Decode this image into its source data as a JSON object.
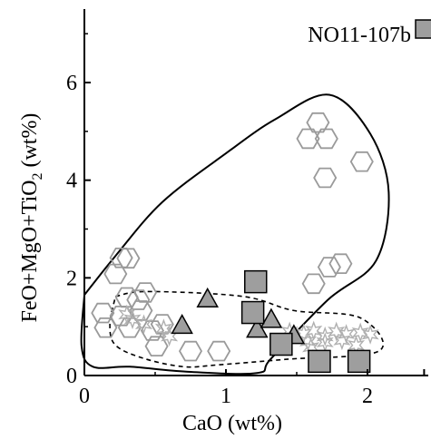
{
  "chart_data": {
    "type": "scatter",
    "title": "",
    "xlabel": "CaO (wt%)",
    "ylabel_parts": {
      "main": "FeO+MgO+TiO",
      "subscript": "2",
      "suffix": " (wt%)"
    },
    "xlim": [
      0,
      2.4
    ],
    "ylim": [
      0,
      7.3
    ],
    "x_ticks": [
      0,
      1,
      2
    ],
    "y_ticks": [
      0,
      2,
      4,
      6
    ],
    "grid": false,
    "legend": {
      "position": "top-right",
      "label": "NO11-107b",
      "marker": "square"
    },
    "colors": {
      "filled_marker": "#9e9e9e",
      "hexagon_stroke": "#9a9a9a",
      "star_stroke": "#b0b0b0",
      "outline": "#000000"
    },
    "series": [
      {
        "name": "NO11-107b",
        "marker": "square",
        "points": [
          {
            "x": 1.21,
            "y": 1.92
          },
          {
            "x": 1.19,
            "y": 1.29
          },
          {
            "x": 1.39,
            "y": 0.64
          },
          {
            "x": 1.66,
            "y": 0.29
          },
          {
            "x": 1.94,
            "y": 0.29
          }
        ]
      },
      {
        "marker": "triangle",
        "points": [
          {
            "x": 0.69,
            "y": 1.03
          },
          {
            "x": 0.87,
            "y": 1.57
          },
          {
            "x": 1.22,
            "y": 0.95
          },
          {
            "x": 1.32,
            "y": 1.15
          },
          {
            "x": 1.48,
            "y": 0.82
          }
        ]
      },
      {
        "marker": "hexagon",
        "points": [
          {
            "x": 1.65,
            "y": 5.18
          },
          {
            "x": 1.58,
            "y": 4.85
          },
          {
            "x": 1.71,
            "y": 4.85
          },
          {
            "x": 1.7,
            "y": 4.05
          },
          {
            "x": 1.96,
            "y": 4.38
          },
          {
            "x": 0.22,
            "y": 2.08
          },
          {
            "x": 0.26,
            "y": 2.41
          },
          {
            "x": 0.31,
            "y": 2.4
          },
          {
            "x": 1.73,
            "y": 2.22
          },
          {
            "x": 1.81,
            "y": 2.29
          },
          {
            "x": 1.62,
            "y": 1.88
          },
          {
            "x": 0.13,
            "y": 1.28
          },
          {
            "x": 0.26,
            "y": 1.22
          },
          {
            "x": 0.38,
            "y": 1.55
          },
          {
            "x": 0.43,
            "y": 1.7
          },
          {
            "x": 0.4,
            "y": 1.33
          },
          {
            "x": 0.15,
            "y": 0.98
          },
          {
            "x": 0.32,
            "y": 0.98
          },
          {
            "x": 0.48,
            "y": 0.92
          },
          {
            "x": 0.51,
            "y": 0.6
          },
          {
            "x": 0.75,
            "y": 0.5
          },
          {
            "x": 0.95,
            "y": 0.5
          },
          {
            "x": 0.55,
            "y": 1.05
          },
          {
            "x": 0.3,
            "y": 1.6
          }
        ]
      },
      {
        "marker": "star",
        "points": [
          {
            "x": 0.34,
            "y": 1.15
          },
          {
            "x": 0.42,
            "y": 1.05
          },
          {
            "x": 0.56,
            "y": 0.96
          },
          {
            "x": 0.6,
            "y": 0.8
          },
          {
            "x": 1.45,
            "y": 0.9
          },
          {
            "x": 1.55,
            "y": 0.86
          },
          {
            "x": 1.62,
            "y": 0.92
          },
          {
            "x": 1.7,
            "y": 0.8
          },
          {
            "x": 1.78,
            "y": 0.9
          },
          {
            "x": 1.85,
            "y": 0.85
          },
          {
            "x": 1.95,
            "y": 0.88
          },
          {
            "x": 2.02,
            "y": 0.84
          },
          {
            "x": 1.58,
            "y": 0.7
          },
          {
            "x": 1.7,
            "y": 0.68
          },
          {
            "x": 1.82,
            "y": 0.72
          },
          {
            "x": 1.92,
            "y": 0.62
          },
          {
            "x": 1.6,
            "y": 0.58
          },
          {
            "x": 0.3,
            "y": 1.25
          }
        ]
      }
    ],
    "regions": [
      {
        "style": "solid",
        "points": [
          {
            "x": 0.0,
            "y": 1.65
          },
          {
            "x": 0.22,
            "y": 2.45
          },
          {
            "x": 0.55,
            "y": 3.55
          },
          {
            "x": 1.0,
            "y": 4.55
          },
          {
            "x": 1.35,
            "y": 5.25
          },
          {
            "x": 1.73,
            "y": 5.75
          },
          {
            "x": 2.02,
            "y": 4.95
          },
          {
            "x": 2.15,
            "y": 3.75
          },
          {
            "x": 2.06,
            "y": 2.35
          },
          {
            "x": 1.72,
            "y": 1.55
          },
          {
            "x": 1.32,
            "y": 0.35
          },
          {
            "x": 1.22,
            "y": 0.05
          },
          {
            "x": 0.72,
            "y": 0.08
          },
          {
            "x": 0.32,
            "y": 0.18
          },
          {
            "x": 0.06,
            "y": 0.18
          },
          {
            "x": -0.02,
            "y": 0.6
          },
          {
            "x": 0.0,
            "y": 1.65
          }
        ]
      },
      {
        "style": "dashed",
        "points": [
          {
            "x": 0.22,
            "y": 1.62
          },
          {
            "x": 0.45,
            "y": 1.72
          },
          {
            "x": 1.12,
            "y": 1.62
          },
          {
            "x": 1.48,
            "y": 1.33
          },
          {
            "x": 1.95,
            "y": 1.18
          },
          {
            "x": 2.08,
            "y": 0.5
          },
          {
            "x": 1.42,
            "y": 0.33
          },
          {
            "x": 0.95,
            "y": 0.22
          },
          {
            "x": 0.7,
            "y": 0.18
          },
          {
            "x": 0.42,
            "y": 0.35
          },
          {
            "x": 0.22,
            "y": 0.62
          },
          {
            "x": 0.18,
            "y": 1.05
          },
          {
            "x": 0.22,
            "y": 1.62
          }
        ]
      }
    ]
  }
}
